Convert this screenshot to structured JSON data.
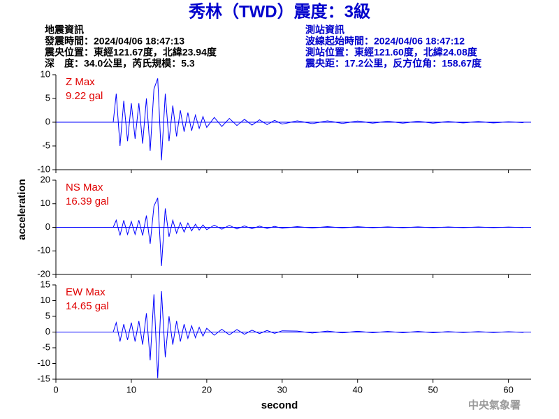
{
  "header": {
    "title": "秀林（TWD）震度：3級",
    "left": [
      "地震資訊",
      "發震時間：2024/04/06 18:47:13",
      "震央位置：東經121.67度，北緯23.94度",
      "深　度：34.0公里，芮氏規模：5.3"
    ],
    "right": [
      "測站資訊",
      "波線起始時間：2024/04/06 18:47:12",
      "測站位置：東經121.60度，北緯24.08度",
      "震央距：17.2公里，反方位角：158.67度"
    ]
  },
  "x_axis": {
    "label": "second",
    "xlim": [
      0,
      63
    ],
    "xticks": [
      0,
      10,
      20,
      30,
      40,
      50,
      60
    ]
  },
  "y_axis_label": "acceleration",
  "footer": "中央氣象署",
  "chart_data": [
    {
      "type": "line",
      "name": "Z Max",
      "peak_label": "9.22 gal",
      "color": "#0000ff",
      "ylim": [
        -10,
        10
      ],
      "yticks": [
        -10,
        -5,
        0,
        5,
        10
      ],
      "x": [
        0,
        7.6,
        8,
        8.5,
        9,
        9.5,
        10,
        10.5,
        11,
        11.5,
        12,
        12.5,
        13,
        13.5,
        14,
        14.5,
        15,
        15.5,
        16,
        16.5,
        17,
        17.5,
        18,
        18.5,
        19,
        19.5,
        20,
        21,
        22,
        23,
        24,
        25,
        26,
        27,
        28,
        29,
        30,
        32,
        34,
        36,
        38,
        40,
        42,
        44,
        46,
        48,
        50,
        52,
        54,
        56,
        58,
        60,
        62
      ],
      "values": [
        0,
        0,
        6,
        -5,
        4.5,
        -4,
        4,
        -3.5,
        4,
        -4.5,
        5,
        -6,
        7,
        9.22,
        -8,
        6,
        -4,
        3.5,
        -3,
        2.5,
        -2,
        2,
        -1.8,
        1.5,
        -1.3,
        1.2,
        -1.1,
        1,
        -0.9,
        0.8,
        -0.7,
        0.6,
        -0.6,
        0.5,
        -0.5,
        0.4,
        -0.4,
        0.3,
        -0.3,
        0.3,
        -0.25,
        0.25,
        -0.2,
        0.2,
        -0.2,
        0.2,
        -0.2,
        0.15,
        -0.15,
        0.15,
        -0.15,
        0.1,
        -0.1
      ]
    },
    {
      "type": "line",
      "name": "NS Max",
      "peak_label": "16.39 gal",
      "color": "#0000ff",
      "ylim": [
        -20,
        20
      ],
      "yticks": [
        -20,
        -10,
        0,
        10,
        20
      ],
      "x": [
        0,
        7.6,
        8,
        8.5,
        9,
        9.5,
        10,
        10.5,
        11,
        11.5,
        12,
        12.5,
        13,
        13.5,
        14,
        14.5,
        15,
        15.5,
        16,
        16.5,
        17,
        17.5,
        18,
        18.5,
        19,
        19.5,
        20,
        21,
        22,
        23,
        24,
        25,
        26,
        27,
        28,
        29,
        30,
        32,
        34,
        36,
        38,
        40,
        42,
        44,
        46,
        48,
        50,
        52,
        54,
        56,
        58,
        60,
        62
      ],
      "values": [
        0,
        0,
        3,
        -3.5,
        3,
        -3,
        2.5,
        -3,
        3,
        -3.5,
        5,
        -7,
        9,
        12.5,
        -16.39,
        8,
        -4,
        3,
        -2.5,
        2,
        -2,
        1.8,
        -1.5,
        1.3,
        -1.2,
        1,
        -1,
        0.9,
        -0.8,
        0.8,
        -0.7,
        0.6,
        -0.6,
        0.5,
        -0.5,
        0.4,
        -0.4,
        0.3,
        -0.3,
        0.3,
        -0.25,
        0.25,
        -0.2,
        0.2,
        -0.2,
        0.2,
        -0.2,
        0.15,
        -0.15,
        0.15,
        -0.15,
        0.1,
        -0.1
      ]
    },
    {
      "type": "line",
      "name": "EW Max",
      "peak_label": "14.65 gal",
      "color": "#0000ff",
      "ylim": [
        -15,
        15
      ],
      "yticks": [
        -15,
        -10,
        -5,
        0,
        5,
        10,
        15
      ],
      "x": [
        0,
        7.6,
        8,
        8.5,
        9,
        9.5,
        10,
        10.5,
        11,
        11.5,
        12,
        12.5,
        13,
        13.5,
        14,
        14.5,
        15,
        15.5,
        16,
        16.5,
        17,
        17.5,
        18,
        18.5,
        19,
        19.5,
        20,
        21,
        22,
        23,
        24,
        25,
        26,
        27,
        28,
        29,
        30,
        32,
        34,
        36,
        38,
        40,
        42,
        44,
        46,
        48,
        50,
        52,
        54,
        56,
        58,
        60,
        62
      ],
      "values": [
        0,
        0,
        3,
        -3,
        2.5,
        -2.5,
        3,
        -3,
        3.5,
        -4,
        6,
        -9,
        12,
        -14.65,
        13,
        -8,
        5,
        -4,
        3.5,
        -3,
        2.5,
        -2,
        2,
        -1.8,
        1.5,
        -1.3,
        1.2,
        -1,
        0.9,
        -0.9,
        0.8,
        -0.7,
        0.6,
        -0.5,
        0.5,
        -0.4,
        0.4,
        0.3,
        -0.3,
        0.3,
        -0.25,
        0.25,
        -0.2,
        0.2,
        -0.2,
        0.2,
        -0.2,
        0.15,
        -0.15,
        0.15,
        -0.15,
        0.1,
        -0.1
      ]
    }
  ]
}
